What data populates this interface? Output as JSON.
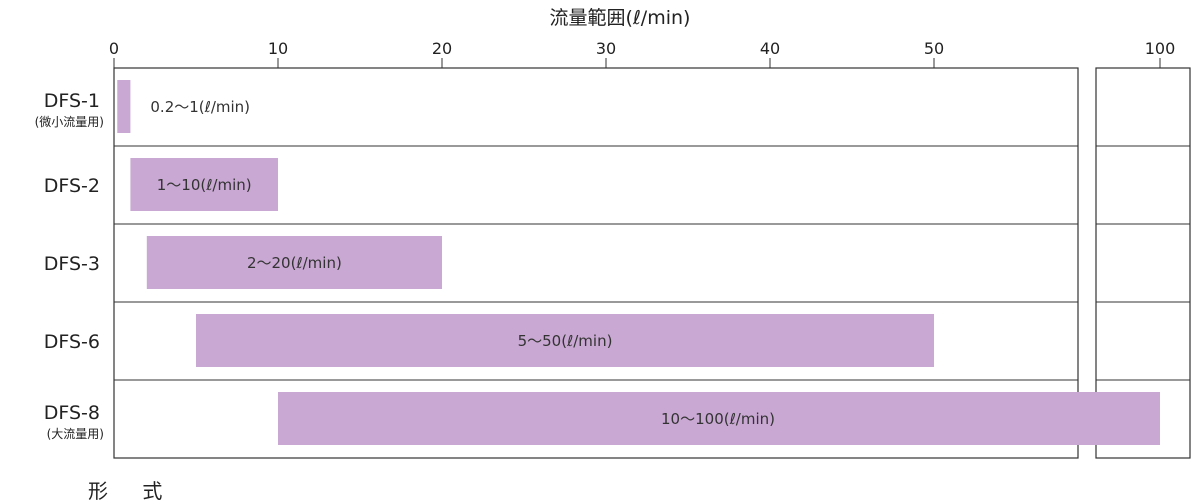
{
  "chart_data": {
    "type": "bar",
    "orientation": "horizontal",
    "title": "流量範囲(ℓ/min)",
    "axis_ticks": [
      {
        "value": 0,
        "label": "0"
      },
      {
        "value": 10,
        "label": "10"
      },
      {
        "value": 20,
        "label": "20"
      },
      {
        "value": 30,
        "label": "30"
      },
      {
        "value": 40,
        "label": "40"
      },
      {
        "value": 50,
        "label": "50"
      },
      {
        "value": 100,
        "label": "100"
      }
    ],
    "axis_break": [
      53,
      97
    ],
    "row_axis_label": "形 式",
    "rows": [
      {
        "name": "DFS-1",
        "sub": "(微小流量用)",
        "min": 0.2,
        "max": 1,
        "label": "0.2〜1(ℓ/min)"
      },
      {
        "name": "DFS-2",
        "sub": "",
        "min": 1,
        "max": 10,
        "label": "1〜10(ℓ/min)"
      },
      {
        "name": "DFS-3",
        "sub": "",
        "min": 2,
        "max": 20,
        "label": "2〜20(ℓ/min)"
      },
      {
        "name": "DFS-6",
        "sub": "",
        "min": 5,
        "max": 50,
        "label": "5〜50(ℓ/min)"
      },
      {
        "name": "DFS-8",
        "sub": "(大流量用)",
        "min": 10,
        "max": 100,
        "label": "10〜100(ℓ/min)"
      }
    ],
    "colors": {
      "bar": "#c9a8d3",
      "frame": "#333333"
    }
  }
}
